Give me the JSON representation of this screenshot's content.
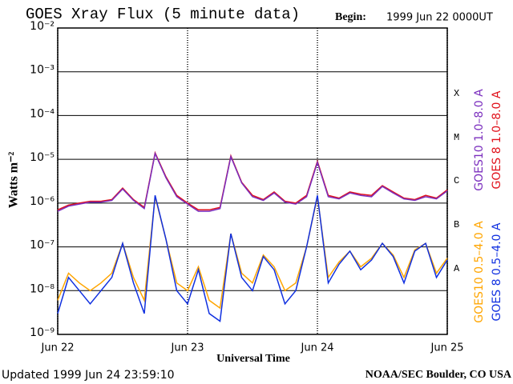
{
  "chart_data": {
    "type": "line",
    "title": "GOES Xray Flux (5 minute data)",
    "begin_label": "Begin:",
    "begin": "1999 Jun 22 0000UT",
    "ylabel": "Watts m⁻²",
    "xlabel": "Universal Time",
    "updated": "Updated 1999 Jun 24 23:59:10",
    "credit": "NOAA/SEC Boulder, CO USA",
    "flare_classes": [
      "X",
      "M",
      "C",
      "B",
      "A"
    ],
    "ylog": true,
    "grid": true,
    "ylim": [
      1e-09,
      0.01
    ],
    "yticks": [
      {
        "value": 1e-09,
        "label": "10⁻⁹"
      },
      {
        "value": 1e-08,
        "label": "10⁻⁸"
      },
      {
        "value": 1e-07,
        "label": "10⁻⁷"
      },
      {
        "value": 1e-06,
        "label": "10⁻⁶"
      },
      {
        "value": 1e-05,
        "label": "10⁻⁵"
      },
      {
        "value": 0.0001,
        "label": "10⁻⁴"
      },
      {
        "value": 0.001,
        "label": "10⁻³"
      },
      {
        "value": 0.01,
        "label": "10⁻²"
      }
    ],
    "xlim": [
      0,
      72
    ],
    "xticks": [
      {
        "value": 0,
        "label": "Jun 22"
      },
      {
        "value": 24,
        "label": "Jun 23"
      },
      {
        "value": 48,
        "label": "Jun 24"
      },
      {
        "value": 72,
        "label": "Jun 25"
      }
    ],
    "x": [
      0,
      2,
      4,
      6,
      8,
      10,
      12,
      14,
      16,
      18,
      20,
      22,
      24,
      26,
      28,
      30,
      32,
      34,
      36,
      38,
      40,
      42,
      44,
      46,
      48,
      50,
      52,
      54,
      56,
      58,
      60,
      62,
      64,
      66,
      68,
      70,
      72
    ],
    "series": [
      {
        "name": "GOES10 1.0–8.0 A",
        "color": "#7b2fbe",
        "values": [
          6.5e-07,
          8.5e-07,
          9.5e-07,
          1.05e-06,
          1.05e-06,
          1.15e-06,
          2.1e-06,
          1.15e-06,
          7.5e-07,
          1.35e-05,
          3.8e-06,
          1.4e-06,
          9.5e-07,
          6.5e-07,
          6.5e-07,
          7.5e-07,
          1.15e-05,
          2.9e-06,
          1.4e-06,
          1.15e-06,
          1.7e-06,
          1.05e-06,
          9.5e-07,
          1.4e-06,
          8.5e-06,
          1.4e-06,
          1.25e-06,
          1.7e-06,
          1.5e-06,
          1.4e-06,
          2.4e-06,
          1.7e-06,
          1.25e-06,
          1.15e-06,
          1.4e-06,
          1.25e-06,
          1.9e-06
        ]
      },
      {
        "name": "GOES 8 1.0–8.0 A",
        "color": "#e0101a",
        "values": [
          7e-07,
          9e-07,
          1e-06,
          1.1e-06,
          1.1e-06,
          1.2e-06,
          2.2e-06,
          1.2e-06,
          8e-07,
          1.4e-05,
          4e-06,
          1.5e-06,
          1e-06,
          7e-07,
          7e-07,
          8e-07,
          1.2e-05,
          3e-06,
          1.5e-06,
          1.2e-06,
          1.8e-06,
          1.1e-06,
          1e-06,
          1.5e-06,
          9e-06,
          1.5e-06,
          1.3e-06,
          1.8e-06,
          1.6e-06,
          1.5e-06,
          2.5e-06,
          1.8e-06,
          1.3e-06,
          1.2e-06,
          1.5e-06,
          1.3e-06,
          2e-06
        ]
      },
      {
        "name": "GOES10 0.5–4.0 A",
        "color": "#ffa500",
        "values": [
          6e-09,
          2.5e-08,
          1.5e-08,
          1e-08,
          1.5e-08,
          2.5e-08,
          1.2e-07,
          2e-08,
          6e-09,
          1.4e-06,
          1.5e-07,
          1.5e-08,
          1e-08,
          3.5e-08,
          6e-09,
          4e-09,
          2e-07,
          2.5e-08,
          1.5e-08,
          6.5e-08,
          3.5e-08,
          1e-08,
          1.5e-08,
          1e-07,
          1.4e-06,
          2e-08,
          4.5e-08,
          8e-08,
          3.5e-08,
          5.5e-08,
          1.2e-07,
          6.5e-08,
          2e-08,
          8.5e-08,
          1.2e-07,
          2.5e-08,
          5.5e-08
        ]
      },
      {
        "name": "GOES 8 0.5–4.0 A",
        "color": "#1030e0",
        "values": [
          3e-09,
          2e-08,
          1e-08,
          5e-09,
          1e-08,
          2e-08,
          1.2e-07,
          1.5e-08,
          3e-09,
          1.5e-06,
          1.5e-07,
          1e-08,
          5e-09,
          3e-08,
          3e-09,
          2e-09,
          2e-07,
          2e-08,
          1e-08,
          6e-08,
          3e-08,
          5e-09,
          1e-08,
          1e-07,
          1.5e-06,
          1.5e-08,
          4e-08,
          8e-08,
          3e-08,
          5e-08,
          1.2e-07,
          6e-08,
          1.5e-08,
          8e-08,
          1.2e-07,
          2e-08,
          5e-08
        ]
      }
    ]
  }
}
